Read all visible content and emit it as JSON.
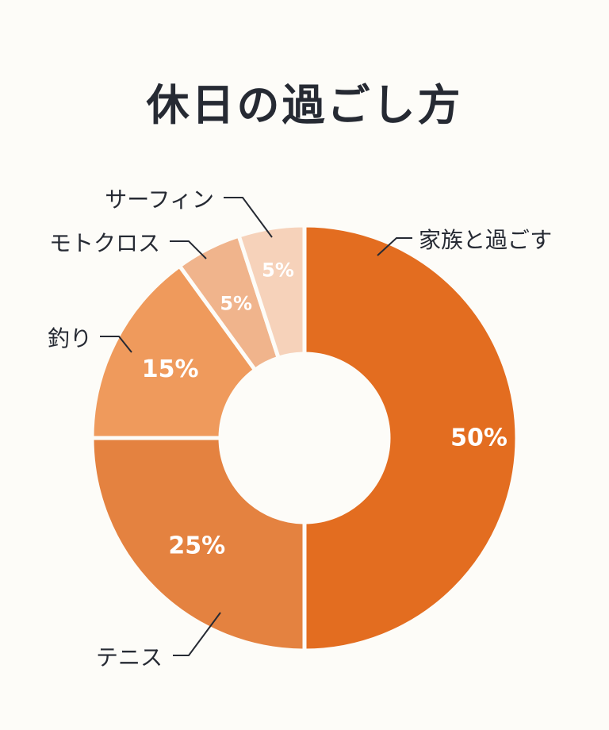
{
  "chart_data": {
    "type": "pie",
    "title": "休日の過ごし方",
    "categories": [
      "家族と過ごす",
      "テニス",
      "釣り",
      "モトクロス",
      "サーフィン"
    ],
    "values": [
      50,
      25,
      15,
      5,
      5
    ],
    "value_labels": [
      "50%",
      "25%",
      "15%",
      "5%",
      "5%"
    ],
    "colors": [
      "#e36d20",
      "#e48240",
      "#ef9a5c",
      "#f0b48c",
      "#f6d2ba"
    ],
    "donut": true,
    "legend": "none"
  }
}
